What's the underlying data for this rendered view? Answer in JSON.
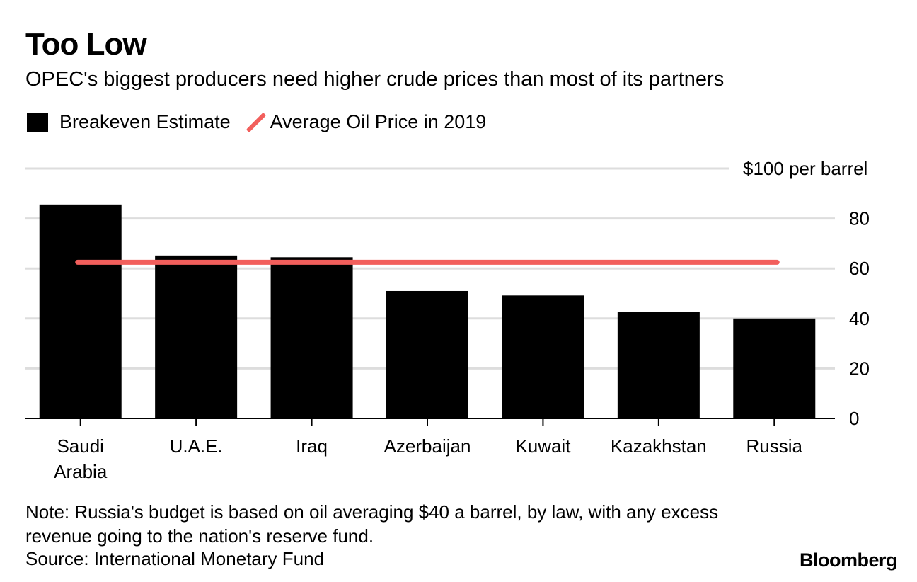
{
  "title": "Too Low",
  "subtitle": "OPEC's biggest producers need higher crude prices than most of its partners",
  "legend": {
    "bar_label": "Breakeven Estimate",
    "line_label": "Average Oil Price in 2019"
  },
  "note": "Note: Russia's budget is based on oil averaging $40 a barrel, by law, with any excess revenue going to the nation's reserve fund.",
  "source": "Source: International Monetary Fund",
  "brand": "Bloomberg",
  "colors": {
    "bar": "#000000",
    "line": "#f25f5c",
    "grid": "#dddddd"
  },
  "chart_data": {
    "type": "bar",
    "categories": [
      "Saudi Arabia",
      "U.A.E.",
      "Iraq",
      "Azerbaijan",
      "Kuwait",
      "Kazakhstan",
      "Russia"
    ],
    "category_lines": [
      [
        "Saudi",
        "Arabia"
      ],
      [
        "U.A.E."
      ],
      [
        "Iraq"
      ],
      [
        "Azerbaijan"
      ],
      [
        "Kuwait"
      ],
      [
        "Kazakhstan"
      ],
      [
        "Russia"
      ]
    ],
    "series": [
      {
        "name": "Breakeven Estimate",
        "values": [
          85.6,
          65.2,
          64.5,
          51.0,
          49.2,
          42.5,
          40.0
        ]
      }
    ],
    "reference_line": {
      "name": "Average Oil Price in 2019",
      "value": 62.5
    },
    "ylim": [
      0,
      100
    ],
    "yticks": [
      0,
      20,
      40,
      60,
      80,
      100
    ],
    "ytick_labels": [
      "0",
      "20",
      "40",
      "60",
      "80",
      "$100 per barrel"
    ],
    "y_axis_side": "right",
    "grid": true,
    "legend_position": "top-left"
  }
}
